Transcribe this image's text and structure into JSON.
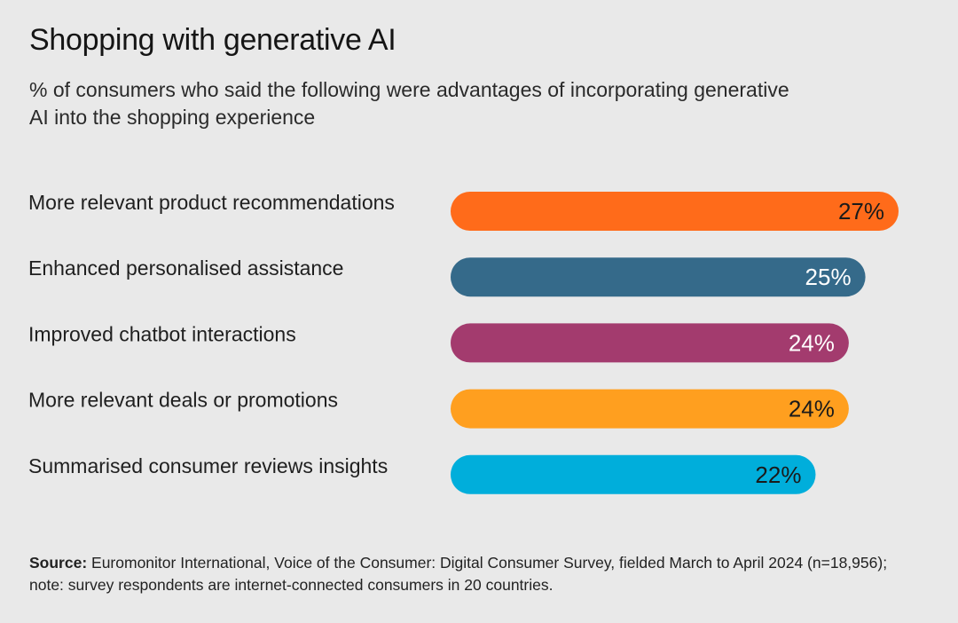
{
  "chart_data": {
    "type": "bar",
    "orientation": "horizontal",
    "title": "Shopping with generative AI",
    "subtitle": "% of consumers who said the following were advantages of incorporating generative AI into the shopping experience",
    "categories": [
      "More relevant product recommendations",
      "Enhanced personalised assistance",
      "Improved chatbot interactions",
      "More relevant deals or promotions",
      "Summarised consumer reviews insights"
    ],
    "values": [
      27,
      25,
      24,
      24,
      22
    ],
    "value_labels": [
      "27%",
      "25%",
      "24%",
      "24%",
      "22%"
    ],
    "colors": [
      "#ff6b1a",
      "#356a8a",
      "#a33b6e",
      "#ff9f1f",
      "#00aedb"
    ],
    "label_colors": [
      "#1a1a1a",
      "#ffffff",
      "#ffffff",
      "#1a1a1a",
      "#1a1a1a"
    ],
    "grid": false,
    "legend": "none"
  },
  "source": {
    "label": "Source:",
    "text": "Euromonitor International, Voice of the Consumer: Digital Consumer Survey, fielded March to April 2024 (n=18,956); note: survey respondents are internet-connected consumers in 20 countries."
  }
}
